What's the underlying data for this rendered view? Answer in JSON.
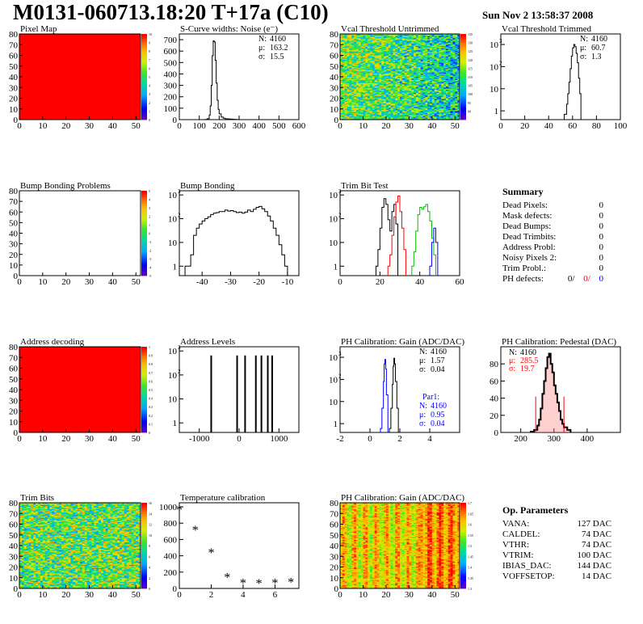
{
  "header": {
    "title": "M0131-060713.18:20 T+17a (C10)",
    "date": "Sun Nov  2 13:58:37 2008"
  },
  "colors": {
    "map_red": "#ff0000",
    "hist_line": "#000000",
    "fit_red": "#ff0000",
    "fit_green": "#00c000",
    "fit_blue": "#0000ff"
  },
  "chart_data": [
    {
      "id": "pixel-map",
      "type": "heatmap",
      "title": "Pixel Map",
      "xlim": [
        0,
        52
      ],
      "ylim": [
        0,
        80
      ],
      "xticks": [
        0,
        10,
        20,
        30,
        40,
        50
      ],
      "yticks": [
        0,
        10,
        20,
        30,
        40,
        50,
        60,
        70,
        80
      ],
      "fill": "uniform",
      "value": 10,
      "zlim": [
        0,
        10
      ],
      "zticks": [
        0,
        1,
        2,
        3,
        4,
        5,
        6,
        7,
        8,
        9,
        10
      ]
    },
    {
      "id": "scurve-noise",
      "type": "line",
      "title": "S-Curve widths: Noise (e⁻)",
      "xlim": [
        0,
        600
      ],
      "ylim": [
        0,
        750
      ],
      "xticks": [
        0,
        100,
        200,
        300,
        400,
        500,
        600
      ],
      "yticks": [
        0,
        100,
        200,
        300,
        400,
        500,
        600,
        700
      ],
      "x": [
        120,
        130,
        140,
        150,
        155,
        160,
        165,
        170,
        175,
        180,
        185,
        190,
        195,
        200,
        210,
        220,
        230,
        240,
        250,
        260,
        270,
        280,
        290,
        300
      ],
      "y": [
        0,
        2,
        8,
        40,
        120,
        300,
        560,
        690,
        680,
        520,
        320,
        170,
        90,
        50,
        22,
        12,
        8,
        6,
        5,
        4,
        3,
        2,
        1,
        0
      ],
      "stats": [
        {
          "label": "N:",
          "value": "4160"
        },
        {
          "label": "μ:",
          "value": "163.2"
        },
        {
          "label": "σ:",
          "value": "15.5"
        }
      ]
    },
    {
      "id": "vcal-untrimmed",
      "type": "heatmap",
      "title": "Vcal Threshold Untrimmed",
      "xlim": [
        0,
        52
      ],
      "ylim": [
        0,
        80
      ],
      "xticks": [
        0,
        10,
        20,
        30,
        40,
        50
      ],
      "yticks": [
        0,
        10,
        20,
        30,
        40,
        50,
        60,
        70,
        80
      ],
      "fill": "noise",
      "zlim": [
        85,
        135
      ],
      "zticks": [
        90,
        95,
        100,
        105,
        110,
        115,
        120,
        125,
        130,
        135
      ]
    },
    {
      "id": "vcal-trimmed",
      "type": "line",
      "title": "Vcal Threshold Trimmed",
      "log": true,
      "xlim": [
        0,
        100
      ],
      "ylim": [
        0.4,
        3000
      ],
      "xticks": [
        0,
        20,
        40,
        60,
        80,
        100
      ],
      "ytick_labels": [
        "1",
        "10",
        "10",
        "10"
      ],
      "ytick_exps": [
        "",
        "",
        "2",
        "3"
      ],
      "x": [
        53,
        55,
        56,
        57,
        58,
        59,
        60,
        61,
        62,
        63,
        64,
        65,
        66,
        67
      ],
      "y": [
        0.7,
        2,
        6,
        20,
        80,
        300,
        700,
        1000,
        800,
        400,
        150,
        30,
        6,
        1
      ],
      "stats": [
        {
          "label": "N:",
          "value": "4160"
        },
        {
          "label": "μ:",
          "value": "60.7"
        },
        {
          "label": "σ:",
          "value": "1.3"
        }
      ]
    },
    {
      "id": "bump-bonding-problems",
      "type": "heatmap",
      "title": "Bump Bonding Problems",
      "xlim": [
        0,
        52
      ],
      "ylim": [
        0,
        80
      ],
      "xticks": [
        0,
        10,
        20,
        30,
        40,
        50
      ],
      "yticks": [
        0,
        10,
        20,
        30,
        40,
        50,
        60,
        70,
        80
      ],
      "fill": "empty",
      "zlim": [
        -5,
        5
      ],
      "zticks": [
        -5,
        -4,
        -3,
        -2,
        -1,
        0,
        1,
        2,
        3,
        4,
        5
      ]
    },
    {
      "id": "bump-bonding",
      "type": "line",
      "title": "Bump Bonding",
      "log": true,
      "xlim": [
        -48,
        -6
      ],
      "ylim": [
        0.4,
        1500
      ],
      "xticks": [
        -40,
        -30,
        -20,
        -10
      ],
      "ytick_labels": [
        "1",
        "10",
        "10",
        "10"
      ],
      "ytick_exps": [
        "",
        "",
        "2",
        "3"
      ],
      "x": [
        -46,
        -45,
        -44,
        -43,
        -42,
        -41,
        -40,
        -39,
        -38,
        -37,
        -36,
        -35,
        -34,
        -33,
        -32,
        -31,
        -30,
        -29,
        -28,
        -27,
        -26,
        -25,
        -24,
        -23,
        -22,
        -21,
        -20,
        -19,
        -18,
        -17,
        -16,
        -15,
        -14,
        -13,
        -12,
        -11,
        -10
      ],
      "y": [
        1,
        1,
        3,
        20,
        40,
        60,
        80,
        100,
        120,
        150,
        170,
        180,
        200,
        200,
        230,
        210,
        220,
        200,
        180,
        190,
        170,
        190,
        230,
        200,
        250,
        300,
        330,
        260,
        200,
        130,
        80,
        40,
        20,
        8,
        3,
        1,
        0.5
      ]
    },
    {
      "id": "trim-bit-test",
      "type": "line",
      "title": "Trim Bit Test",
      "log": true,
      "xlim": [
        0,
        60
      ],
      "ylim": [
        0.4,
        1500
      ],
      "xticks": [
        0,
        20,
        40,
        60
      ],
      "ytick_labels": [
        "1",
        "10",
        "10",
        "10"
      ],
      "ytick_exps": [
        "",
        "",
        "2",
        "3"
      ],
      "series": [
        {
          "color": "#000000",
          "x": [
            18,
            19,
            20,
            21,
            22,
            23,
            24,
            25,
            26,
            27,
            28,
            29
          ],
          "y": [
            1,
            5,
            40,
            300,
            700,
            400,
            90,
            30,
            200,
            400,
            60,
            1
          ]
        },
        {
          "color": "#ff0000",
          "x": [
            24,
            25,
            26,
            27,
            28,
            29,
            30,
            31,
            32,
            33
          ],
          "y": [
            1,
            3,
            20,
            120,
            500,
            900,
            200,
            40,
            5,
            1
          ]
        },
        {
          "color": "#00c000",
          "x": [
            36,
            37,
            38,
            39,
            40,
            41,
            42,
            43,
            44,
            45,
            46,
            47,
            48
          ],
          "y": [
            1,
            4,
            30,
            150,
            300,
            250,
            320,
            400,
            200,
            80,
            15,
            3,
            1
          ]
        },
        {
          "color": "#0000ff",
          "x": [
            45,
            46,
            47,
            48,
            49
          ],
          "y": [
            1,
            10,
            40,
            10,
            1
          ]
        }
      ]
    },
    {
      "id": "summary",
      "type": "table",
      "title": "Summary",
      "rows": [
        {
          "label": "Dead Pixels:",
          "value": "0"
        },
        {
          "label": "Mask defects:",
          "value": "0"
        },
        {
          "label": "Dead Bumps:",
          "value": "0"
        },
        {
          "label": "Dead Trimbits:",
          "value": "0"
        },
        {
          "label": "Address Probl:",
          "value": "0"
        },
        {
          "label": "Noisy Pixels 2:",
          "value": "0"
        },
        {
          "label": "Trim Probl.:",
          "value": "0"
        }
      ],
      "ph_defects": {
        "label": "PH defects:",
        "black": "0/",
        "red": "0/",
        "blue": "0"
      }
    },
    {
      "id": "address-decoding",
      "type": "heatmap",
      "title": "Address decoding",
      "xlim": [
        0,
        52
      ],
      "ylim": [
        0,
        80
      ],
      "xticks": [
        0,
        10,
        20,
        30,
        40,
        50
      ],
      "yticks": [
        0,
        10,
        20,
        30,
        40,
        50,
        60,
        70,
        80
      ],
      "fill": "uniform",
      "value": 1,
      "zlim": [
        0,
        1
      ],
      "zticks": [
        0,
        0.1,
        0.2,
        0.3,
        0.4,
        0.5,
        0.6,
        0.7,
        0.8,
        0.9,
        1
      ]
    },
    {
      "id": "address-levels",
      "type": "bar",
      "title": "Address Levels",
      "log": true,
      "xlim": [
        -1500,
        1500
      ],
      "ylim": [
        0.4,
        1500
      ],
      "xticks": [
        -1000,
        0,
        1000
      ],
      "ytick_labels": [
        "1",
        "10",
        "10",
        "10"
      ],
      "ytick_exps": [
        "",
        "",
        "2",
        "3"
      ],
      "x": [
        -700,
        -50,
        150,
        420,
        560,
        720,
        830
      ],
      "y": [
        650,
        650,
        650,
        650,
        650,
        650,
        650
      ]
    },
    {
      "id": "ph-gain",
      "type": "line",
      "title": "PH Calibration: Gain (ADC/DAC)",
      "log": true,
      "xlim": [
        -2,
        6
      ],
      "ylim": [
        0.4,
        3000
      ],
      "xticks": [
        -2,
        0,
        2,
        4
      ],
      "ytick_labels": [
        "1",
        "10",
        "10",
        "10"
      ],
      "ytick_exps": [
        "",
        "",
        "2",
        "3"
      ],
      "series": [
        {
          "color": "#000000",
          "x": [
            1.3,
            1.4,
            1.5,
            1.55,
            1.6,
            1.65,
            1.7,
            1.8,
            1.9
          ],
          "y": [
            0.6,
            5,
            60,
            400,
            900,
            500,
            80,
            5,
            0.6
          ]
        },
        {
          "color": "#0000ff",
          "x": [
            0.7,
            0.8,
            0.9,
            0.95,
            1.0,
            1.05,
            1.1,
            1.2
          ],
          "y": [
            0.6,
            5,
            80,
            500,
            800,
            300,
            20,
            0.6
          ]
        }
      ],
      "stats": [
        {
          "label": "N:",
          "value": "4160"
        },
        {
          "label": "μ:",
          "value": "1.57"
        },
        {
          "label": "σ:",
          "value": "0.04"
        }
      ],
      "stats2_title": "Par1:",
      "stats2": [
        {
          "label": "N:",
          "value": "4160"
        },
        {
          "label": "μ:",
          "value": "0.95"
        },
        {
          "label": "σ:",
          "value": "0.04"
        }
      ]
    },
    {
      "id": "ph-pedestal",
      "type": "line",
      "title": "PH Calibration: Pedestal (DAC)",
      "xlim": [
        140,
        500
      ],
      "ylim": [
        0,
        100
      ],
      "xticks": [
        200,
        300,
        400
      ],
      "yticks": [
        0,
        20,
        40,
        60,
        80
      ],
      "x": [
        230,
        240,
        250,
        255,
        260,
        265,
        270,
        275,
        280,
        285,
        290,
        295,
        300,
        305,
        310,
        315,
        320,
        325,
        330,
        340,
        350
      ],
      "y": [
        1,
        3,
        8,
        15,
        28,
        45,
        60,
        75,
        88,
        92,
        80,
        70,
        55,
        45,
        35,
        25,
        15,
        10,
        6,
        3,
        1
      ],
      "stats": [
        {
          "label": "N:",
          "value": "4160"
        },
        {
          "label": "μ:",
          "value": "285.5"
        },
        {
          "label": "σ:",
          "value": "19.7"
        }
      ]
    },
    {
      "id": "trim-bits",
      "type": "heatmap",
      "title": "Trim Bits",
      "xlim": [
        0,
        52
      ],
      "ylim": [
        0,
        80
      ],
      "xticks": [
        0,
        10,
        20,
        30,
        40,
        50
      ],
      "yticks": [
        0,
        10,
        20,
        30,
        40,
        50,
        60,
        70,
        80
      ],
      "fill": "noise2",
      "zlim": [
        0,
        16
      ],
      "zticks": [
        0,
        2,
        4,
        6,
        8,
        10,
        12,
        14,
        16
      ]
    },
    {
      "id": "temperature-calibration",
      "type": "scatter",
      "title": "Temperature calibration",
      "xlim": [
        0,
        7.5
      ],
      "ylim": [
        0,
        1050
      ],
      "xticks": [
        0,
        2,
        4,
        6
      ],
      "yticks": [
        0,
        200,
        400,
        600,
        800,
        1000
      ],
      "x": [
        0,
        1,
        2,
        3,
        4,
        5,
        6,
        7
      ],
      "y": [
        960,
        715,
        435,
        135,
        65,
        60,
        65,
        75
      ]
    },
    {
      "id": "ph-gain-map",
      "type": "heatmap",
      "title": "PH Calibration: Gain (ADC/DAC)",
      "xlim": [
        0,
        52
      ],
      "ylim": [
        0,
        80
      ],
      "xticks": [
        0,
        10,
        20,
        30,
        40,
        50
      ],
      "yticks": [
        0,
        10,
        20,
        30,
        40,
        50,
        60,
        70,
        80
      ],
      "fill": "stripes",
      "zlim": [
        1.3,
        1.7
      ],
      "zticks": [
        1.3,
        1.35,
        1.4,
        1.45,
        1.5,
        1.55,
        1.6,
        1.65,
        1.7
      ]
    },
    {
      "id": "op-parameters",
      "type": "table",
      "title": "Op. Parameters",
      "rows": [
        {
          "label": "VANA:",
          "value": "127 DAC"
        },
        {
          "label": "CALDEL:",
          "value": "74 DAC"
        },
        {
          "label": "VTHR:",
          "value": "74 DAC"
        },
        {
          "label": "VTRIM:",
          "value": "100 DAC"
        },
        {
          "label": "IBIAS_DAC:",
          "value": "144 DAC"
        },
        {
          "label": "VOFFSETOP:",
          "value": "14 DAC"
        }
      ]
    }
  ]
}
